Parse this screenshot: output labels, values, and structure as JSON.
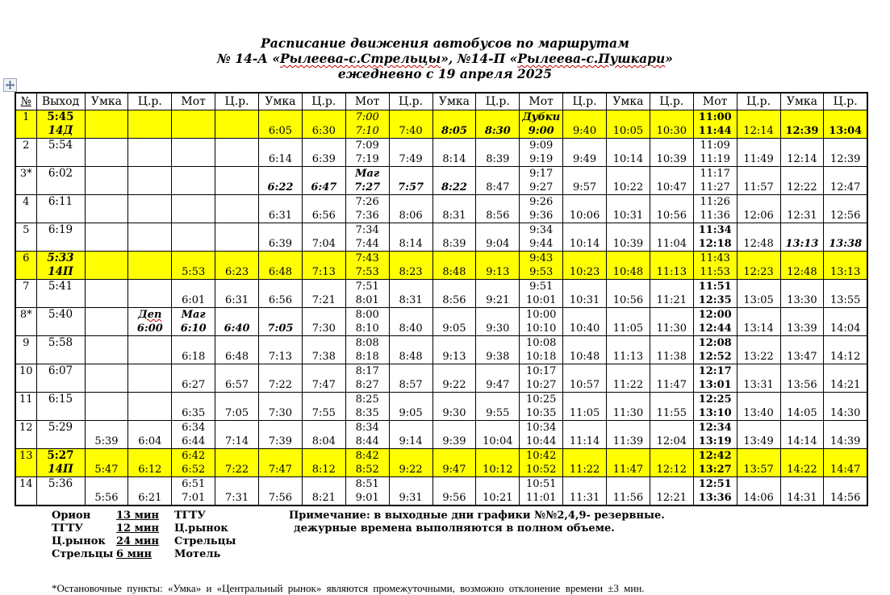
{
  "title": {
    "line1": "Расписание движения автобусов по маршрутам",
    "line2_segments": [
      {
        "text": "№ 14-А «"
      },
      {
        "text": "Рылеева-с.Стрельцы",
        "squiggle": true
      },
      {
        "text": "», №14-П «"
      },
      {
        "text": "Рылеева-с.Пушкари",
        "squiggle": true
      },
      {
        "text": "»"
      }
    ],
    "line3": "ежедневно с 19 апреля 2025"
  },
  "colors": {
    "highlight": "#FFFF00",
    "squiggle": "#C00000",
    "border": "#000000"
  },
  "icons": {
    "move_handle": "four-way-move-arrow"
  },
  "table": {
    "headers": [
      "№",
      "Выход",
      "Умка",
      "Ц.р.",
      "Мот",
      "Ц.р.",
      "Умка",
      "Ц.р.",
      "Мот",
      "Ц.р.",
      "Умка",
      "Ц.р.",
      "Мот",
      "Ц.р.",
      "Умка",
      "Ц.р.",
      "Мот",
      "Ц.р.",
      "Умка",
      "Ц.р."
    ],
    "rows": [
      {
        "num": "1",
        "hl": true,
        "out": {
          "t": "5:45",
          "ts": "bold",
          "b": "14Д",
          "bs": "bold ital"
        },
        "cells": [
          null,
          null,
          null,
          null,
          {
            "b": "6:05"
          },
          {
            "b": "6:30"
          },
          {
            "t": "7:00",
            "ts": "ital",
            "b": "7:10",
            "bs": "ital"
          },
          {
            "b": "7:40"
          },
          {
            "b": "8:05",
            "bs": "bold ital"
          },
          {
            "b": "8:30",
            "bs": "bold ital"
          },
          {
            "t": "Дубки",
            "ts": "bold ital",
            "b": "9:00",
            "bs": "bold ital"
          },
          {
            "b": "9:40"
          },
          {
            "b": "10:05"
          },
          {
            "b": "10:30"
          },
          {
            "t": "11:00",
            "ts": "bold",
            "b": "11:44",
            "bs": "bold"
          },
          {
            "b": "12:14"
          },
          {
            "b": "12:39",
            "bs": "bold"
          },
          {
            "b": "13:04",
            "bs": "bold"
          }
        ]
      },
      {
        "num": "2",
        "hl": false,
        "out": {
          "t": "5:54"
        },
        "cells": [
          null,
          null,
          null,
          null,
          {
            "b": "6:14"
          },
          {
            "b": "6:39"
          },
          {
            "t": "7:09",
            "b": "7:19"
          },
          {
            "b": "7:49"
          },
          {
            "b": "8:14"
          },
          {
            "b": "8:39"
          },
          {
            "t": "9:09",
            "b": "9:19"
          },
          {
            "b": "9:49"
          },
          {
            "b": "10:14"
          },
          {
            "b": "10:39"
          },
          {
            "t": "11:09",
            "b": "11:19"
          },
          {
            "b": "11:49"
          },
          {
            "b": "12:14"
          },
          {
            "b": "12:39"
          }
        ]
      },
      {
        "num": "3*",
        "hl": false,
        "out": {
          "t": "6:02"
        },
        "cells": [
          null,
          null,
          null,
          null,
          {
            "b": "6:22",
            "bs": "bold ital"
          },
          {
            "b": "6:47",
            "bs": "bold ital"
          },
          {
            "t": "Маг",
            "ts": "bold ital",
            "b": "7:27",
            "bs": "bold ital"
          },
          {
            "b": "7:57",
            "bs": "bold ital"
          },
          {
            "b": "8:22",
            "bs": "bold ital"
          },
          {
            "b": "8:47"
          },
          {
            "t": "9:17",
            "b": "9:27"
          },
          {
            "b": "9:57"
          },
          {
            "b": "10:22"
          },
          {
            "b": "10:47"
          },
          {
            "t": "11:17",
            "b": "11:27"
          },
          {
            "b": "11:57"
          },
          {
            "b": "12:22"
          },
          {
            "b": "12:47"
          }
        ]
      },
      {
        "num": "4",
        "hl": false,
        "out": {
          "t": "6:11"
        },
        "cells": [
          null,
          null,
          null,
          null,
          {
            "b": "6:31"
          },
          {
            "b": "6:56"
          },
          {
            "t": "7:26",
            "b": "7:36"
          },
          {
            "b": "8:06"
          },
          {
            "b": "8:31"
          },
          {
            "b": "8:56"
          },
          {
            "t": "9:26",
            "b": "9:36"
          },
          {
            "b": "10:06"
          },
          {
            "b": "10:31"
          },
          {
            "b": "10:56"
          },
          {
            "t": "11:26",
            "b": "11:36"
          },
          {
            "b": "12:06"
          },
          {
            "b": "12:31"
          },
          {
            "b": "12:56"
          }
        ]
      },
      {
        "num": "5",
        "hl": false,
        "out": {
          "t": "6:19"
        },
        "cells": [
          null,
          null,
          null,
          null,
          {
            "b": "6:39"
          },
          {
            "b": "7:04"
          },
          {
            "t": "7:34",
            "b": "7:44"
          },
          {
            "b": "8:14"
          },
          {
            "b": "8:39"
          },
          {
            "b": "9:04"
          },
          {
            "t": "9:34",
            "b": "9:44"
          },
          {
            "b": "10:14"
          },
          {
            "b": "10:39"
          },
          {
            "b": "11:04"
          },
          {
            "t": "11:34",
            "ts": "bold",
            "b": "12:18",
            "bs": "bold"
          },
          {
            "b": "12:48"
          },
          {
            "b": "13:13",
            "bs": "bold ital"
          },
          {
            "b": "13:38",
            "bs": "bold ital"
          }
        ]
      },
      {
        "num": "6",
        "hl": true,
        "out": {
          "t": "5:33",
          "ts": "bold ital",
          "b": "14П",
          "bs": "bold ital"
        },
        "cells": [
          null,
          null,
          {
            "b": "5:53"
          },
          {
            "b": "6:23"
          },
          {
            "b": "6:48"
          },
          {
            "b": "7:13"
          },
          {
            "t": "7:43",
            "b": "7:53"
          },
          {
            "b": "8:23"
          },
          {
            "b": "8:48"
          },
          {
            "b": "9:13"
          },
          {
            "t": "9:43",
            "b": "9:53"
          },
          {
            "b": "10:23"
          },
          {
            "b": "10:48"
          },
          {
            "b": "11:13"
          },
          {
            "t": "11:43",
            "b": "11:53"
          },
          {
            "b": "12:23"
          },
          {
            "b": "12:48"
          },
          {
            "b": "13:13"
          }
        ]
      },
      {
        "num": "7",
        "hl": false,
        "out": {
          "t": "5:41"
        },
        "cells": [
          null,
          null,
          {
            "b": "6:01"
          },
          {
            "b": "6:31"
          },
          {
            "b": "6:56"
          },
          {
            "b": "7:21"
          },
          {
            "t": "7:51",
            "b": "8:01"
          },
          {
            "b": "8:31"
          },
          {
            "b": "8:56"
          },
          {
            "b": "9:21"
          },
          {
            "t": "9:51",
            "b": "10:01"
          },
          {
            "b": "10:31"
          },
          {
            "b": "10:56"
          },
          {
            "b": "11:21"
          },
          {
            "t": "11:51",
            "ts": "bold",
            "b": "12:35",
            "bs": "bold"
          },
          {
            "b": "13:05"
          },
          {
            "b": "13:30"
          },
          {
            "b": "13:55"
          }
        ]
      },
      {
        "num": "8*",
        "hl": false,
        "out": {
          "t": "5:40"
        },
        "cells": [
          null,
          {
            "t": "Деп",
            "ts": "bold ital sq",
            "b": "6:00",
            "bs": "bold ital"
          },
          {
            "t": "Маг",
            "ts": "bold ital",
            "b": "6:10",
            "bs": "bold ital"
          },
          {
            "b": "6:40",
            "bs": "bold ital"
          },
          {
            "b": "7:05",
            "bs": "bold ital"
          },
          {
            "b": "7:30"
          },
          {
            "t": "8:00",
            "b": "8:10"
          },
          {
            "b": "8:40"
          },
          {
            "b": "9:05"
          },
          {
            "b": "9:30"
          },
          {
            "t": "10:00",
            "b": "10:10"
          },
          {
            "b": "10:40"
          },
          {
            "b": "11:05"
          },
          {
            "b": "11:30"
          },
          {
            "t": "12:00",
            "ts": "bold",
            "b": "12:44",
            "bs": "bold"
          },
          {
            "b": "13:14"
          },
          {
            "b": "13:39"
          },
          {
            "b": "14:04"
          }
        ]
      },
      {
        "num": "9",
        "hl": false,
        "out": {
          "t": "5:58"
        },
        "cells": [
          null,
          null,
          {
            "b": "6:18"
          },
          {
            "b": "6:48"
          },
          {
            "b": "7:13"
          },
          {
            "b": "7:38"
          },
          {
            "t": "8:08",
            "b": "8:18"
          },
          {
            "b": "8:48"
          },
          {
            "b": "9:13"
          },
          {
            "b": "9:38"
          },
          {
            "t": "10:08",
            "b": "10:18"
          },
          {
            "b": "10:48"
          },
          {
            "b": "11:13"
          },
          {
            "b": "11:38"
          },
          {
            "t": "12:08",
            "ts": "bold",
            "b": "12:52",
            "bs": "bold"
          },
          {
            "b": "13:22"
          },
          {
            "b": "13:47"
          },
          {
            "b": "14:12"
          }
        ]
      },
      {
        "num": "10",
        "hl": false,
        "out": {
          "t": "6:07"
        },
        "cells": [
          null,
          null,
          {
            "b": "6:27"
          },
          {
            "b": "6:57"
          },
          {
            "b": "7:22"
          },
          {
            "b": "7:47"
          },
          {
            "t": "8:17",
            "b": "8:27"
          },
          {
            "b": "8:57"
          },
          {
            "b": "9:22"
          },
          {
            "b": "9:47"
          },
          {
            "t": "10:17",
            "b": "10:27"
          },
          {
            "b": "10:57"
          },
          {
            "b": "11:22"
          },
          {
            "b": "11:47"
          },
          {
            "t": "12:17",
            "ts": "bold",
            "b": "13:01",
            "bs": "bold"
          },
          {
            "b": "13:31"
          },
          {
            "b": "13:56"
          },
          {
            "b": "14:21"
          }
        ]
      },
      {
        "num": "11",
        "hl": false,
        "out": {
          "t": "6:15"
        },
        "cells": [
          null,
          null,
          {
            "b": "6:35"
          },
          {
            "b": "7:05"
          },
          {
            "b": "7:30"
          },
          {
            "b": "7:55"
          },
          {
            "t": "8:25",
            "b": "8:35"
          },
          {
            "b": "9:05"
          },
          {
            "b": "9:30"
          },
          {
            "b": "9:55"
          },
          {
            "t": "10:25",
            "b": "10:35"
          },
          {
            "b": "11:05"
          },
          {
            "b": "11:30"
          },
          {
            "b": "11:55"
          },
          {
            "t": "12:25",
            "ts": "bold",
            "b": "13:10",
            "bs": "bold"
          },
          {
            "b": "13:40"
          },
          {
            "b": "14:05"
          },
          {
            "b": "14:30"
          }
        ]
      },
      {
        "num": "12",
        "hl": false,
        "out": {
          "t": "5:29"
        },
        "cells": [
          {
            "b": "5:39"
          },
          {
            "b": "6:04"
          },
          {
            "t": "6:34",
            "b": "6:44"
          },
          {
            "b": "7:14"
          },
          {
            "b": "7:39"
          },
          {
            "b": "8:04"
          },
          {
            "t": "8:34",
            "b": "8:44"
          },
          {
            "b": "9:14"
          },
          {
            "b": "9:39"
          },
          {
            "b": "10:04"
          },
          {
            "t": "10:34",
            "b": "10:44"
          },
          {
            "b": "11:14"
          },
          {
            "b": "11:39"
          },
          {
            "b": "12:04"
          },
          {
            "t": "12:34",
            "ts": "bold",
            "b": "13:19",
            "bs": "bold"
          },
          {
            "b": "13:49"
          },
          {
            "b": "14:14"
          },
          {
            "b": "14:39"
          }
        ]
      },
      {
        "num": "13",
        "hl": true,
        "out": {
          "t": "5:27",
          "ts": "bold",
          "b": "14П",
          "bs": "bold ital"
        },
        "cells": [
          {
            "b": "5:47"
          },
          {
            "b": "6:12"
          },
          {
            "t": "6:42",
            "b": "6:52"
          },
          {
            "b": "7:22"
          },
          {
            "b": "7:47"
          },
          {
            "b": "8:12"
          },
          {
            "t": "8:42",
            "b": "8:52"
          },
          {
            "b": "9:22"
          },
          {
            "b": "9:47"
          },
          {
            "b": "10:12"
          },
          {
            "t": "10:42",
            "b": "10:52"
          },
          {
            "b": "11:22"
          },
          {
            "b": "11:47"
          },
          {
            "b": "12:12"
          },
          {
            "t": "12:42",
            "ts": "bold",
            "b": "13:27",
            "bs": "bold"
          },
          {
            "b": "13:57"
          },
          {
            "b": "14:22"
          },
          {
            "b": "14:47"
          }
        ]
      },
      {
        "num": "14",
        "hl": false,
        "out": {
          "t": "5:36"
        },
        "cells": [
          {
            "b": "5:56"
          },
          {
            "b": "6:21"
          },
          {
            "t": "6:51",
            "b": "7:01"
          },
          {
            "b": "7:31"
          },
          {
            "b": "7:56"
          },
          {
            "b": "8:21"
          },
          {
            "t": "8:51",
            "b": "9:01"
          },
          {
            "b": "9:31"
          },
          {
            "b": "9:56"
          },
          {
            "b": "10:21"
          },
          {
            "t": "10:51",
            "b": "11:01"
          },
          {
            "b": "11:31"
          },
          {
            "b": "11:56"
          },
          {
            "b": "12:21"
          },
          {
            "t": "12:51",
            "ts": "bold",
            "b": "13:36",
            "bs": "bold"
          },
          {
            "b": "14:06"
          },
          {
            "b": "14:31"
          },
          {
            "b": "14:56"
          }
        ]
      }
    ]
  },
  "footer": {
    "transfers": [
      {
        "from": "Орион",
        "mins": "13 мин",
        "to": "ТГТУ"
      },
      {
        "from": "ТГТУ",
        "mins": "12 мин",
        "to": "Ц.рынок"
      },
      {
        "from": "Ц.рынок",
        "mins": "24 мин",
        "to": "Стрельцы"
      },
      {
        "from": "Стрельцы",
        "mins": "6 мин",
        "to": "Мотель"
      }
    ],
    "note_line1": "Примечание:  в выходные дни графики №№2,4,9- резервные.",
    "note_line2": "дежурные времена выполняются в полном объеме.",
    "bottom_note": "*Остановочные  пункты:  «Умка» и  «Центральный  рынок»  являются  промежуточными,  возможно  отклонение  времени  ±3  мин."
  }
}
